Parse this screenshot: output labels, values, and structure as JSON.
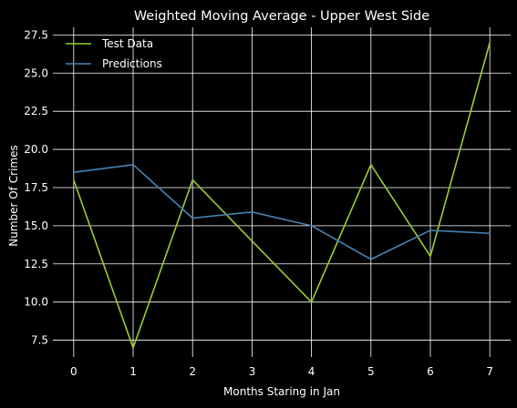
{
  "chart_data": {
    "type": "line",
    "title": "Weighted Moving Average - Upper West Side",
    "xlabel": "Months Staring in Jan",
    "ylabel": "Number Of Crimes",
    "x": [
      0,
      1,
      2,
      3,
      4,
      5,
      6,
      7
    ],
    "xlim": [
      -0.35,
      7.35
    ],
    "ylim": [
      6.4,
      28.0
    ],
    "xticks": [
      "0",
      "1",
      "2",
      "3",
      "4",
      "5",
      "6",
      "7"
    ],
    "yticks": [
      "7.5",
      "10.0",
      "12.5",
      "15.0",
      "17.5",
      "20.0",
      "22.5",
      "25.0",
      "27.5"
    ],
    "grid": true,
    "legend_position": "top-left",
    "background": "#000000",
    "grid_color": "#ffffff",
    "series": [
      {
        "name": "Test Data",
        "color": "#9acd32",
        "values": [
          18,
          7,
          18,
          14,
          10,
          19,
          13,
          27
        ]
      },
      {
        "name": "Predictions",
        "color": "#4682b4",
        "values": [
          18.5,
          19.0,
          15.5,
          15.9,
          15.0,
          12.8,
          14.7,
          14.5
        ]
      }
    ]
  }
}
